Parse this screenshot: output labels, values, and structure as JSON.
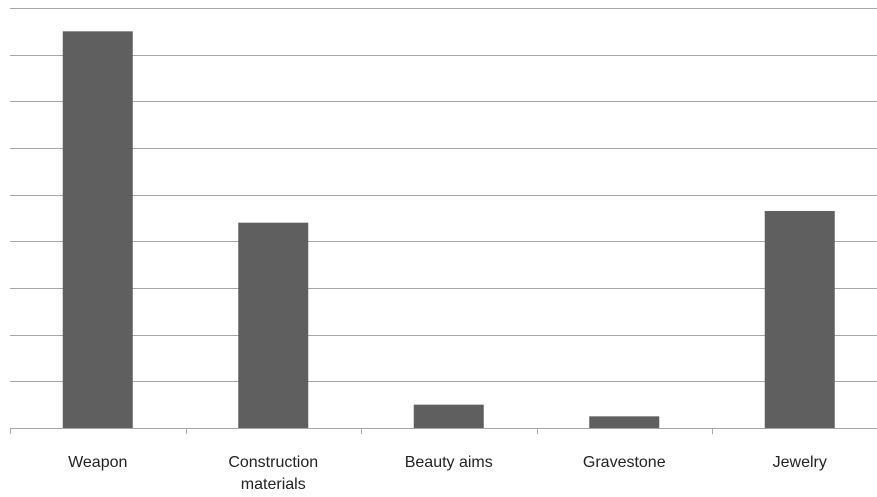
{
  "chart_data": {
    "type": "bar",
    "categories": [
      "Weapon",
      "Construction materials",
      "Beauty aims",
      "Gravestone",
      "Jewelry"
    ],
    "values": [
      8.5,
      4.4,
      0.5,
      0.25,
      4.65
    ],
    "color": "#5f5f5f",
    "ylim": [
      0,
      9
    ],
    "yticks": [
      0,
      1,
      2,
      3,
      4,
      5,
      6,
      7,
      8,
      9
    ],
    "grid": true
  }
}
